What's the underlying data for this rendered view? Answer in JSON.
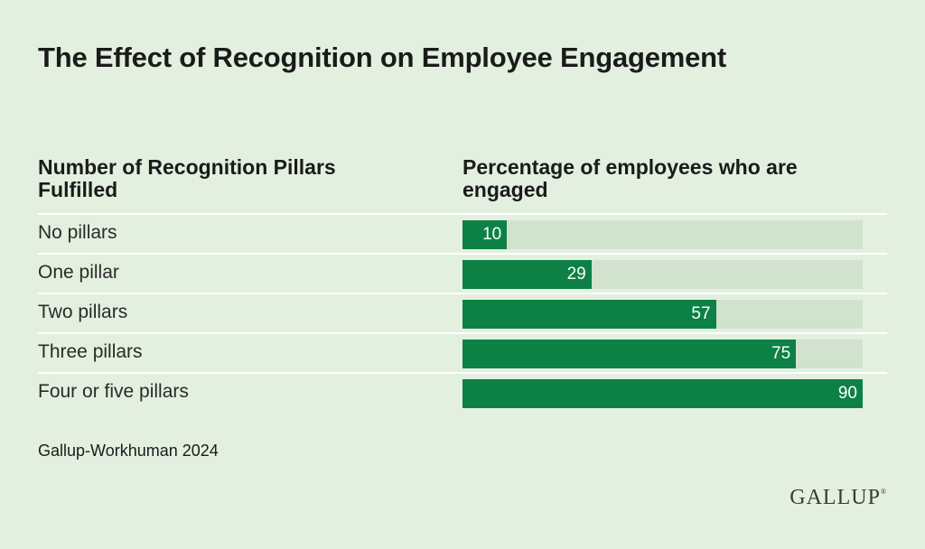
{
  "title": "The Effect of Recognition on Employee Engagement",
  "headers": {
    "left": "Number of Recognition Pillars Fulfilled",
    "right": "Percentage of employees who are engaged"
  },
  "source": "Gallup-Workhuman 2024",
  "logo": "GALLUP",
  "colors": {
    "background": "#e3f0df",
    "bar": "#0d8145",
    "track": "#d1e3cf"
  },
  "chart_data": {
    "type": "bar",
    "orientation": "horizontal",
    "categories": [
      "No pillars",
      "One pillar",
      "Two pillars",
      "Three pillars",
      "Four or five pillars"
    ],
    "values": [
      10,
      29,
      57,
      75,
      90
    ],
    "xlim": [
      0,
      90
    ]
  }
}
